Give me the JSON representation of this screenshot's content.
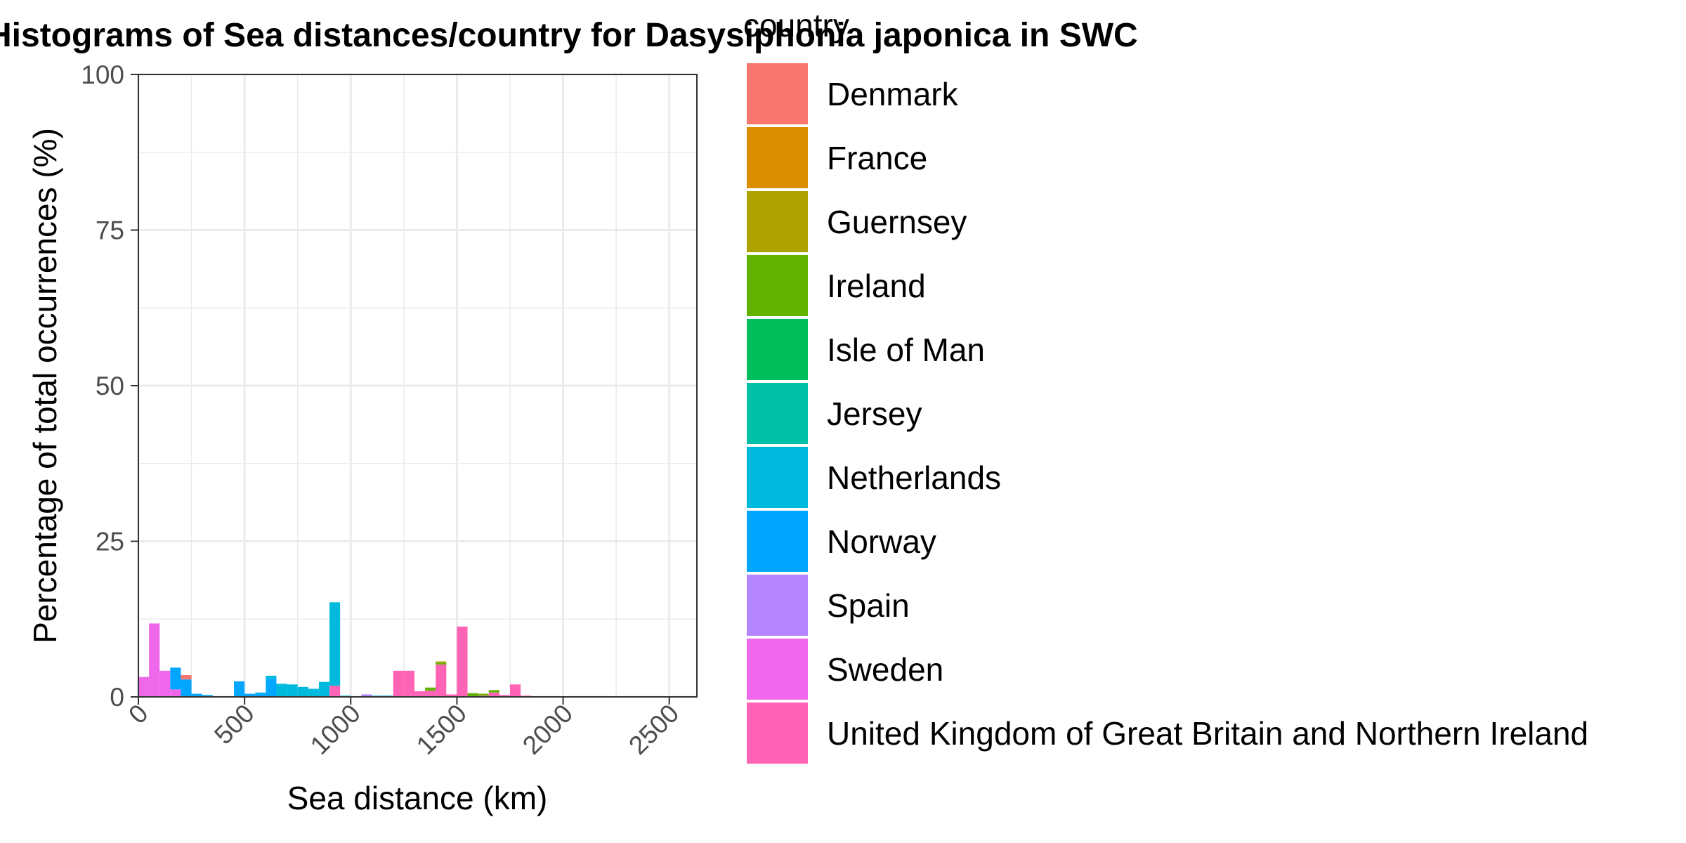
{
  "chart_data": {
    "type": "bar",
    "stacked": true,
    "title": "Histograms of Sea distances/country for Dasysiphonia japonica in SWC",
    "xlabel": "Sea distance (km)",
    "ylabel": "Percentage of total occurrences (%)",
    "xlim": [
      0,
      2630
    ],
    "ylim": [
      0,
      100
    ],
    "x_ticks": [
      0,
      500,
      1000,
      1500,
      2000,
      2500
    ],
    "y_ticks": [
      0,
      25,
      50,
      75,
      100
    ],
    "grid": true,
    "bin_width": 50,
    "legend": {
      "title": "country",
      "position": "right",
      "entries": [
        {
          "name": "Denmark",
          "color": "#F8766D"
        },
        {
          "name": "France",
          "color": "#DB8E00"
        },
        {
          "name": "Guernsey",
          "color": "#AEA200"
        },
        {
          "name": "Ireland",
          "color": "#64B200"
        },
        {
          "name": "Isle of Man",
          "color": "#00BD5C"
        },
        {
          "name": "Jersey",
          "color": "#00C1A7"
        },
        {
          "name": "Netherlands",
          "color": "#00BADE"
        },
        {
          "name": "Norway",
          "color": "#00A6FF"
        },
        {
          "name": "Spain",
          "color": "#B385FF"
        },
        {
          "name": "Sweden",
          "color": "#EF67EB"
        },
        {
          "name": "United Kingdom of Great Britain and Northern Ireland",
          "color": "#FF63B6"
        }
      ]
    },
    "bins": [
      {
        "x": 25,
        "values": {
          "Sweden": 3.2
        }
      },
      {
        "x": 75,
        "values": {
          "Sweden": 11.8
        }
      },
      {
        "x": 125,
        "values": {
          "Sweden": 4.2
        }
      },
      {
        "x": 175,
        "values": {
          "Sweden": 1.2,
          "Norway": 3.5
        }
      },
      {
        "x": 225,
        "values": {
          "Norway": 2.8,
          "Denmark": 0.7
        }
      },
      {
        "x": 275,
        "values": {
          "Norway": 0.5
        }
      },
      {
        "x": 325,
        "values": {
          "Norway": 0.3
        }
      },
      {
        "x": 475,
        "values": {
          "Norway": 2.5
        }
      },
      {
        "x": 525,
        "values": {
          "Norway": 0.5
        }
      },
      {
        "x": 575,
        "values": {
          "Netherlands": 0.2,
          "Norway": 0.5
        }
      },
      {
        "x": 625,
        "values": {
          "Netherlands": 0.5,
          "Norway": 2.9
        }
      },
      {
        "x": 675,
        "values": {
          "Netherlands": 2.1
        }
      },
      {
        "x": 725,
        "values": {
          "Netherlands": 2.0
        }
      },
      {
        "x": 775,
        "values": {
          "Netherlands": 1.6
        }
      },
      {
        "x": 825,
        "values": {
          "Netherlands": 1.3
        }
      },
      {
        "x": 875,
        "values": {
          "Netherlands": 2.4
        }
      },
      {
        "x": 925,
        "values": {
          "United Kingdom of Great Britain and Northern Ireland": 1.8,
          "Netherlands": 13.4
        }
      },
      {
        "x": 975,
        "values": {
          "Netherlands": 0.2
        }
      },
      {
        "x": 1075,
        "values": {
          "Spain": 0.4
        }
      },
      {
        "x": 1125,
        "values": {
          "Netherlands": 0.2
        }
      },
      {
        "x": 1175,
        "values": {
          "Netherlands": 0.2
        }
      },
      {
        "x": 1225,
        "values": {
          "United Kingdom of Great Britain and Northern Ireland": 4.2
        }
      },
      {
        "x": 1275,
        "values": {
          "United Kingdom of Great Britain and Northern Ireland": 4.2
        }
      },
      {
        "x": 1325,
        "values": {
          "United Kingdom of Great Britain and Northern Ireland": 0.9
        }
      },
      {
        "x": 1375,
        "values": {
          "United Kingdom of Great Britain and Northern Ireland": 1.0,
          "Ireland": 0.5
        }
      },
      {
        "x": 1425,
        "values": {
          "United Kingdom of Great Britain and Northern Ireland": 5.2,
          "Ireland": 0.3,
          "Guernsey": 0.2
        }
      },
      {
        "x": 1475,
        "values": {
          "United Kingdom of Great Britain and Northern Ireland": 0.4
        }
      },
      {
        "x": 1525,
        "values": {
          "United Kingdom of Great Britain and Northern Ireland": 11.3
        }
      },
      {
        "x": 1575,
        "values": {
          "Ireland": 0.6
        }
      },
      {
        "x": 1625,
        "values": {
          "Ireland": 0.3,
          "United Kingdom of Great Britain and Northern Ireland": 0.2
        }
      },
      {
        "x": 1675,
        "values": {
          "United Kingdom of Great Britain and Northern Ireland": 0.7,
          "Ireland": 0.4
        }
      },
      {
        "x": 1725,
        "values": {
          "United Kingdom of Great Britain and Northern Ireland": 0.3
        }
      },
      {
        "x": 1775,
        "values": {
          "United Kingdom of Great Britain and Northern Ireland": 2.0
        }
      },
      {
        "x": 1825,
        "values": {
          "United Kingdom of Great Britain and Northern Ireland": 0.2
        }
      }
    ]
  }
}
